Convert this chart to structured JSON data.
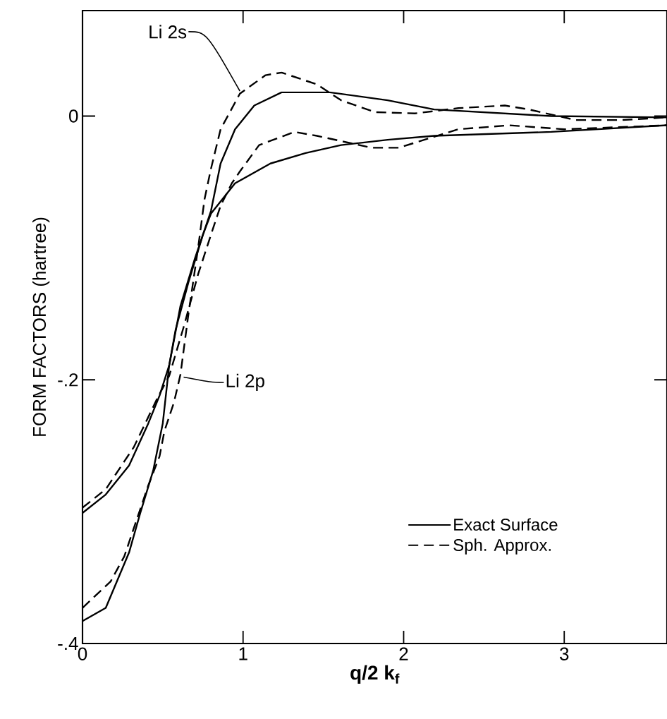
{
  "chart_data": {
    "type": "line",
    "xlabel": "q/2 k$_{f}$",
    "ylabel": "FORM FACTORS (hartree)",
    "xlim": [
      0,
      3.64
    ],
    "ylim": [
      -0.4,
      0.08
    ],
    "xticks": [
      0,
      1,
      2,
      3
    ],
    "yticks": [
      {
        "value": 0,
        "label": "0"
      },
      {
        "value": -0.2,
        "label": "-.2"
      },
      {
        "value": -0.4,
        "label": "-.4"
      }
    ],
    "legend": "bottom right",
    "grid": false,
    "marker": "none",
    "annotations": [
      {
        "text": "Li 2s",
        "x": 0.98,
        "y": 0.019
      },
      {
        "text": "Li 2p",
        "x": 0.63,
        "y": -0.198
      }
    ],
    "series": [
      {
        "name": "Exact Surface",
        "color": "#000000",
        "line_style": "solid",
        "x": [
          0,
          0.145,
          0.29,
          0.36,
          0.44,
          0.5,
          0.54,
          0.61,
          0.7,
          0.8,
          0.86,
          0.95,
          1.07,
          1.24,
          1.54,
          1.9,
          2.19,
          2.92,
          3.64
        ],
        "values": [
          -0.383,
          -0.373,
          -0.331,
          -0.301,
          -0.269,
          -0.233,
          -0.189,
          -0.144,
          -0.108,
          -0.072,
          -0.036,
          -0.01,
          0.008,
          0.018,
          0.018,
          0.012,
          0.005,
          0.0,
          -0.001
        ]
      },
      {
        "name": "Sph. Approx.",
        "color": "#000000",
        "line_style": "dashed",
        "x": [
          0,
          0.175,
          0.26,
          0.41,
          0.48,
          0.51,
          0.57,
          0.61,
          0.66,
          0.72,
          0.76,
          0.8,
          0.86,
          0.98,
          1.14,
          1.24,
          1.46,
          1.61,
          1.82,
          2.07,
          2.34,
          2.63,
          2.78,
          3.07,
          3.36,
          3.64
        ],
        "values": [
          -0.373,
          -0.353,
          -0.334,
          -0.28,
          -0.258,
          -0.239,
          -0.217,
          -0.196,
          -0.15,
          -0.1,
          -0.063,
          -0.04,
          -0.01,
          0.017,
          0.031,
          0.033,
          0.024,
          0.012,
          0.003,
          0.002,
          0.006,
          0.008,
          0.005,
          -0.003,
          -0.003,
          -0.001
        ]
      },
      {
        "color": "#000000",
        "line_style": "solid",
        "x": [
          0,
          0.145,
          0.29,
          0.41,
          0.48,
          0.54,
          0.58,
          0.66,
          0.75,
          0.8,
          0.95,
          1.17,
          1.39,
          1.61,
          1.9,
          2.19,
          2.92,
          3.64
        ],
        "values": [
          -0.301,
          -0.287,
          -0.265,
          -0.233,
          -0.212,
          -0.189,
          -0.162,
          -0.126,
          -0.09,
          -0.074,
          -0.051,
          -0.036,
          -0.028,
          -0.022,
          -0.018,
          -0.015,
          -0.012,
          -0.007
        ]
      },
      {
        "color": "#000000",
        "line_style": "dashed",
        "x": [
          0,
          0.145,
          0.32,
          0.47,
          0.54,
          0.63,
          0.72,
          0.8,
          0.86,
          0.93,
          0.98,
          1.1,
          1.32,
          1.46,
          1.8,
          1.97,
          2.34,
          2.66,
          3.0,
          3.64
        ],
        "values": [
          -0.297,
          -0.283,
          -0.251,
          -0.213,
          -0.197,
          -0.16,
          -0.12,
          -0.09,
          -0.068,
          -0.051,
          -0.042,
          -0.022,
          -0.012,
          -0.015,
          -0.024,
          -0.024,
          -0.01,
          -0.007,
          -0.01,
          -0.007
        ]
      }
    ]
  }
}
